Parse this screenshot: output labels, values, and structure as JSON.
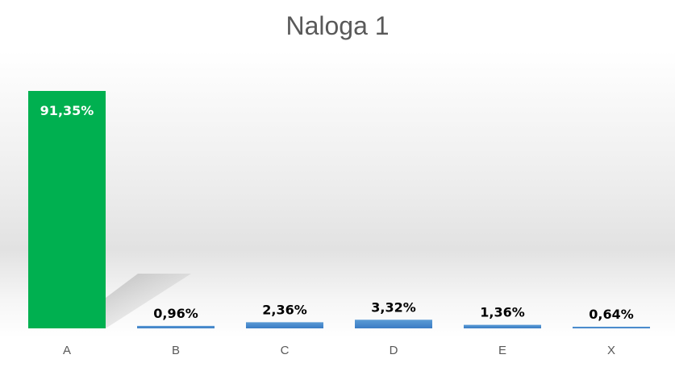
{
  "chart_data": {
    "type": "bar",
    "title": "Naloga 1",
    "xlabel": "",
    "ylabel": "",
    "categories": [
      "A",
      "B",
      "C",
      "D",
      "E",
      "X"
    ],
    "values": [
      91.35,
      0.96,
      2.36,
      3.32,
      1.36,
      0.64
    ],
    "data_labels": [
      "91,35%",
      "0,96%",
      "2,36%",
      "3,32%",
      "1,36%",
      "0,64%"
    ],
    "ylim": [
      0,
      100
    ],
    "grid": false,
    "legend": "none",
    "colors": {
      "highlight": "#00b050",
      "default": "#4a90d9",
      "highlight_label": "#ffffff",
      "default_label": "#000000",
      "title": "#595959",
      "category": "#595959"
    }
  }
}
